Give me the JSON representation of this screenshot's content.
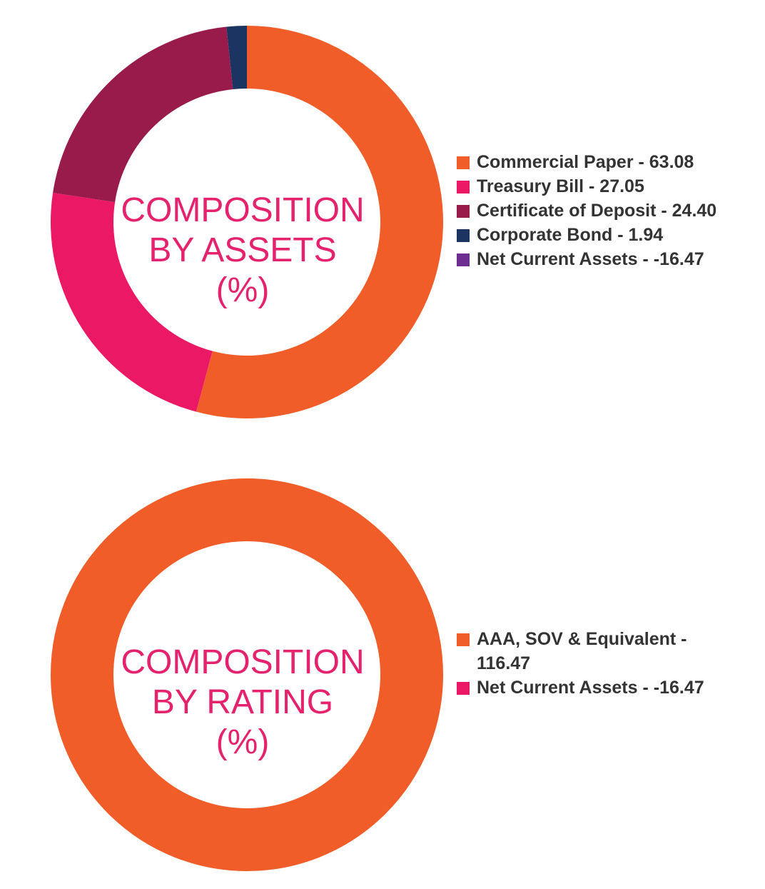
{
  "colors": {
    "orange": "#f05d28",
    "pink": "#eb1866",
    "maroon": "#981b4c",
    "navy": "#1b3461",
    "purple": "#6d2d91",
    "center_text": "#e5226e",
    "legend_text": "#333333"
  },
  "chart_data": [
    {
      "type": "pie",
      "style": "donut",
      "center_label": [
        "COMPOSITION",
        "BY ASSETS",
        "(%)"
      ],
      "legend_placement": "right",
      "slices": [
        {
          "label": "Commercial Paper - 63.08",
          "name": "Commercial Paper",
          "value": 63.08,
          "color": "#f05d28"
        },
        {
          "label": "Treasury Bill - 27.05",
          "name": "Treasury Bill",
          "value": 27.05,
          "color": "#eb1866"
        },
        {
          "label": "Certificate of Deposit - 24.40",
          "name": "Certificate of Deposit",
          "value": 24.4,
          "color": "#981b4c"
        },
        {
          "label": "Corporate Bond - 1.94",
          "name": "Corporate Bond",
          "value": 1.94,
          "color": "#1b3461"
        },
        {
          "label": "Net Current Assets - -16.47",
          "name": "Net Current Assets",
          "value": -16.47,
          "color": "#6d2d91"
        }
      ]
    },
    {
      "type": "pie",
      "style": "donut",
      "center_label": [
        "COMPOSITION",
        "BY RATING",
        "(%)"
      ],
      "legend_placement": "right",
      "slices": [
        {
          "label": "AAA, SOV & Equivalent - 116.47",
          "name": "AAA, SOV & Equivalent",
          "value": 116.47,
          "color": "#f05d28"
        },
        {
          "label": "Net Current Assets - -16.47",
          "name": "Net Current Assets",
          "value": -16.47,
          "color": "#eb1866"
        }
      ]
    }
  ]
}
